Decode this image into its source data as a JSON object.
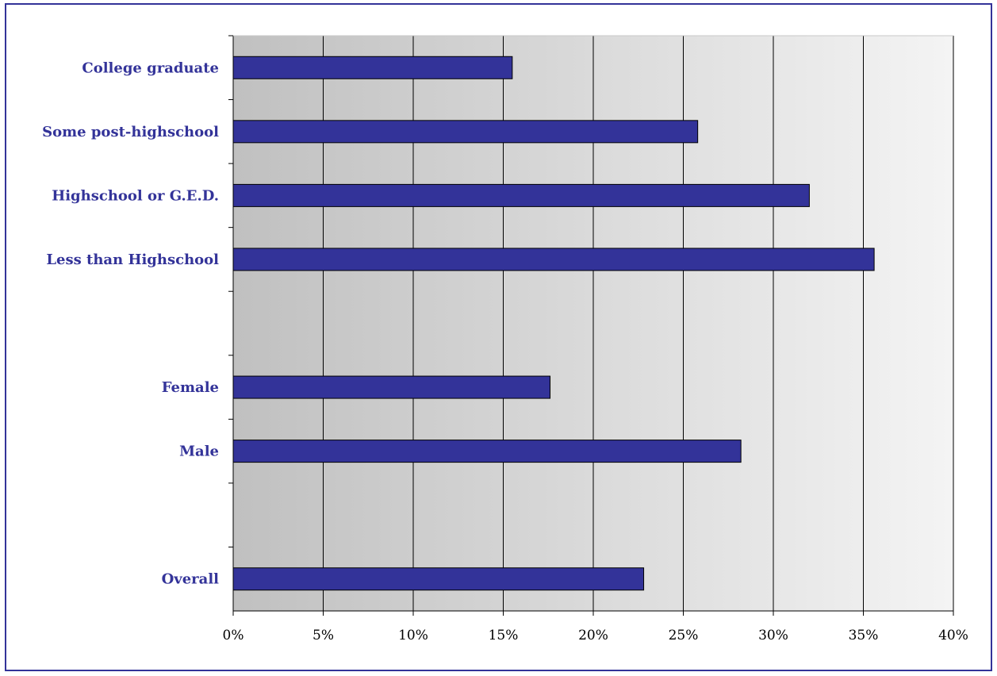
{
  "chart_data": {
    "type": "bar",
    "orientation": "horizontal",
    "title": "",
    "xlabel": "",
    "ylabel": "",
    "categories": [
      "College graduate",
      "Some post-highschool",
      "Highschool or G.E.D.",
      "Less than Highschool",
      "",
      "Female",
      "Male",
      "",
      "Overall"
    ],
    "values": [
      15.5,
      25.8,
      32.0,
      35.6,
      null,
      17.6,
      28.2,
      null,
      22.8
    ],
    "value_unit": "%",
    "xlim": [
      0,
      40
    ],
    "x_ticks": [
      "0%",
      "5%",
      "10%",
      "15%",
      "20%",
      "25%",
      "30%",
      "35%",
      "40%"
    ],
    "grid": "vertical",
    "legend": "none",
    "colors": {
      "bar_fill": "#333399",
      "bar_stroke": "#000000",
      "label_text": "#333399",
      "frame_border": "#333399",
      "plot_gradient_dark": "#c0c0c0",
      "plot_gradient_light": "#f4f4f4"
    }
  }
}
